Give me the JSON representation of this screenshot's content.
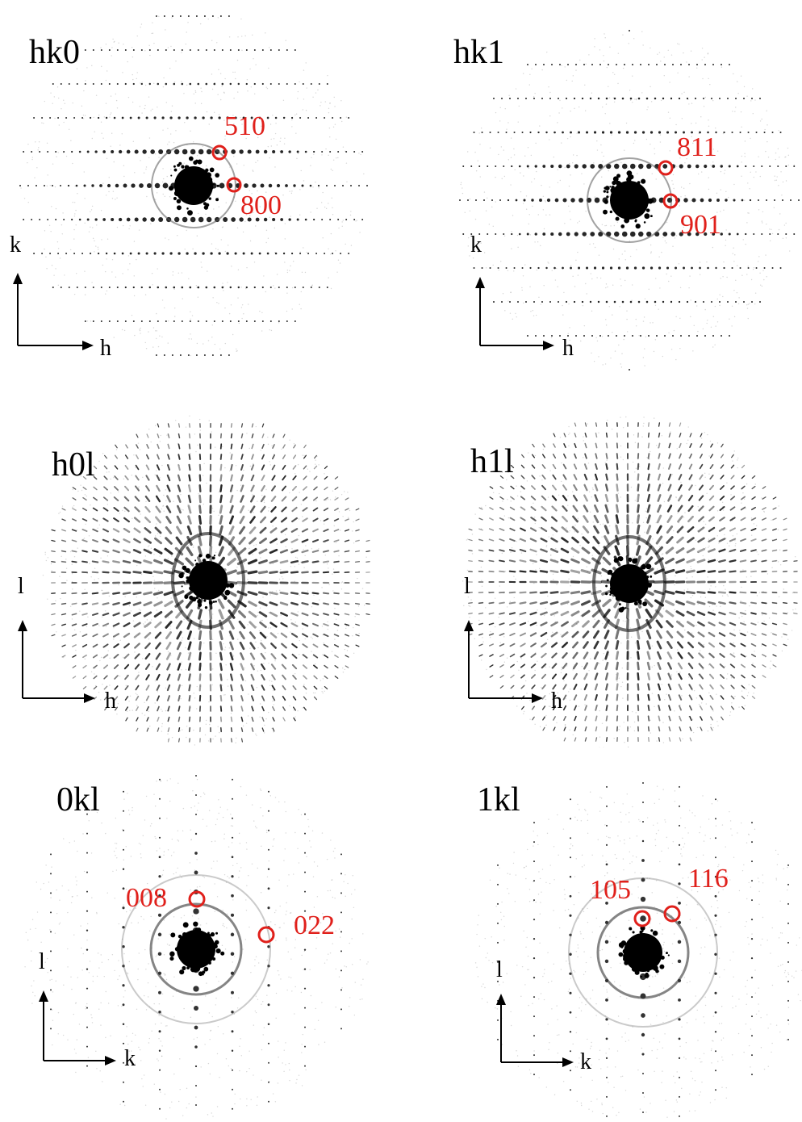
{
  "colors": {
    "marker": "#e0201b",
    "spot": "#000000",
    "background": "#ffffff"
  },
  "panels": [
    {
      "id": "hk0",
      "title": "hk0",
      "axis_x": "h",
      "axis_y": "k",
      "pattern": "row-lines",
      "reflections": [
        {
          "label": "510"
        },
        {
          "label": "800"
        }
      ]
    },
    {
      "id": "hk1",
      "title": "hk1",
      "axis_x": "h",
      "axis_y": "k",
      "pattern": "row-lines",
      "reflections": [
        {
          "label": "811"
        },
        {
          "label": "901"
        }
      ]
    },
    {
      "id": "h0l",
      "title": "h0l",
      "axis_x": "h",
      "axis_y": "l",
      "pattern": "dense-grid",
      "reflections": []
    },
    {
      "id": "h1l",
      "title": "h1l",
      "axis_x": "h",
      "axis_y": "l",
      "pattern": "dense-grid",
      "reflections": []
    },
    {
      "id": "0kl",
      "title": "0kl",
      "axis_x": "k",
      "axis_y": "l",
      "pattern": "column-lines",
      "reflections": [
        {
          "label": "008"
        },
        {
          "label": "022"
        }
      ]
    },
    {
      "id": "1kl",
      "title": "1kl",
      "axis_x": "k",
      "axis_y": "l",
      "pattern": "column-lines",
      "reflections": [
        {
          "label": "105"
        },
        {
          "label": "116"
        }
      ]
    }
  ]
}
